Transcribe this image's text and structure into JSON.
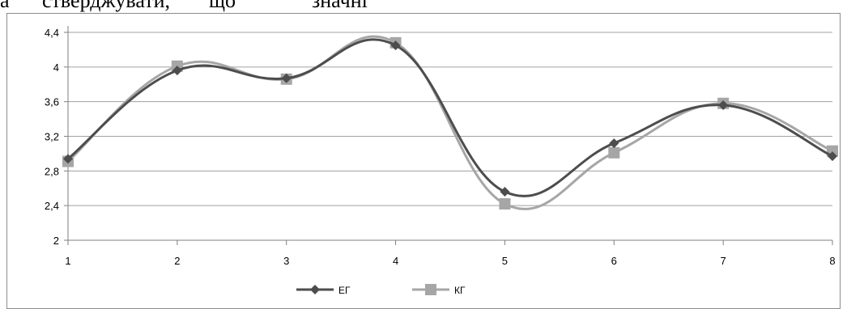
{
  "page_text": {
    "col1": "а",
    "col2": "стверджувати,",
    "col3": "що",
    "col4": "значні"
  },
  "colors": {
    "eg": "#4d4d4d",
    "kg": "#a6a6a6",
    "grid": "#a0a0a0",
    "axis": "#7f7f7f"
  },
  "chart_data": {
    "type": "line",
    "title": "",
    "xlabel": "",
    "ylabel": "",
    "categories": [
      "1",
      "2",
      "3",
      "4",
      "5",
      "6",
      "7",
      "8"
    ],
    "ylim": [
      2,
      4.4
    ],
    "yticks": [
      "2",
      "2,4",
      "2,8",
      "3,2",
      "3,6",
      "4",
      "4,4"
    ],
    "ytick_values": [
      2,
      2.4,
      2.8,
      3.2,
      3.6,
      4,
      4.4
    ],
    "smooth": true,
    "grid": true,
    "legend_position": "bottom",
    "series": [
      {
        "name": "ЕГ",
        "marker": "diamond",
        "color": "#4d4d4d",
        "values": [
          2.94,
          3.96,
          3.87,
          4.25,
          2.56,
          3.12,
          3.56,
          2.97
        ]
      },
      {
        "name": "КГ",
        "marker": "square",
        "color": "#a6a6a6",
        "values": [
          2.91,
          4.01,
          3.86,
          4.28,
          2.42,
          3.01,
          3.58,
          3.03
        ]
      }
    ]
  }
}
